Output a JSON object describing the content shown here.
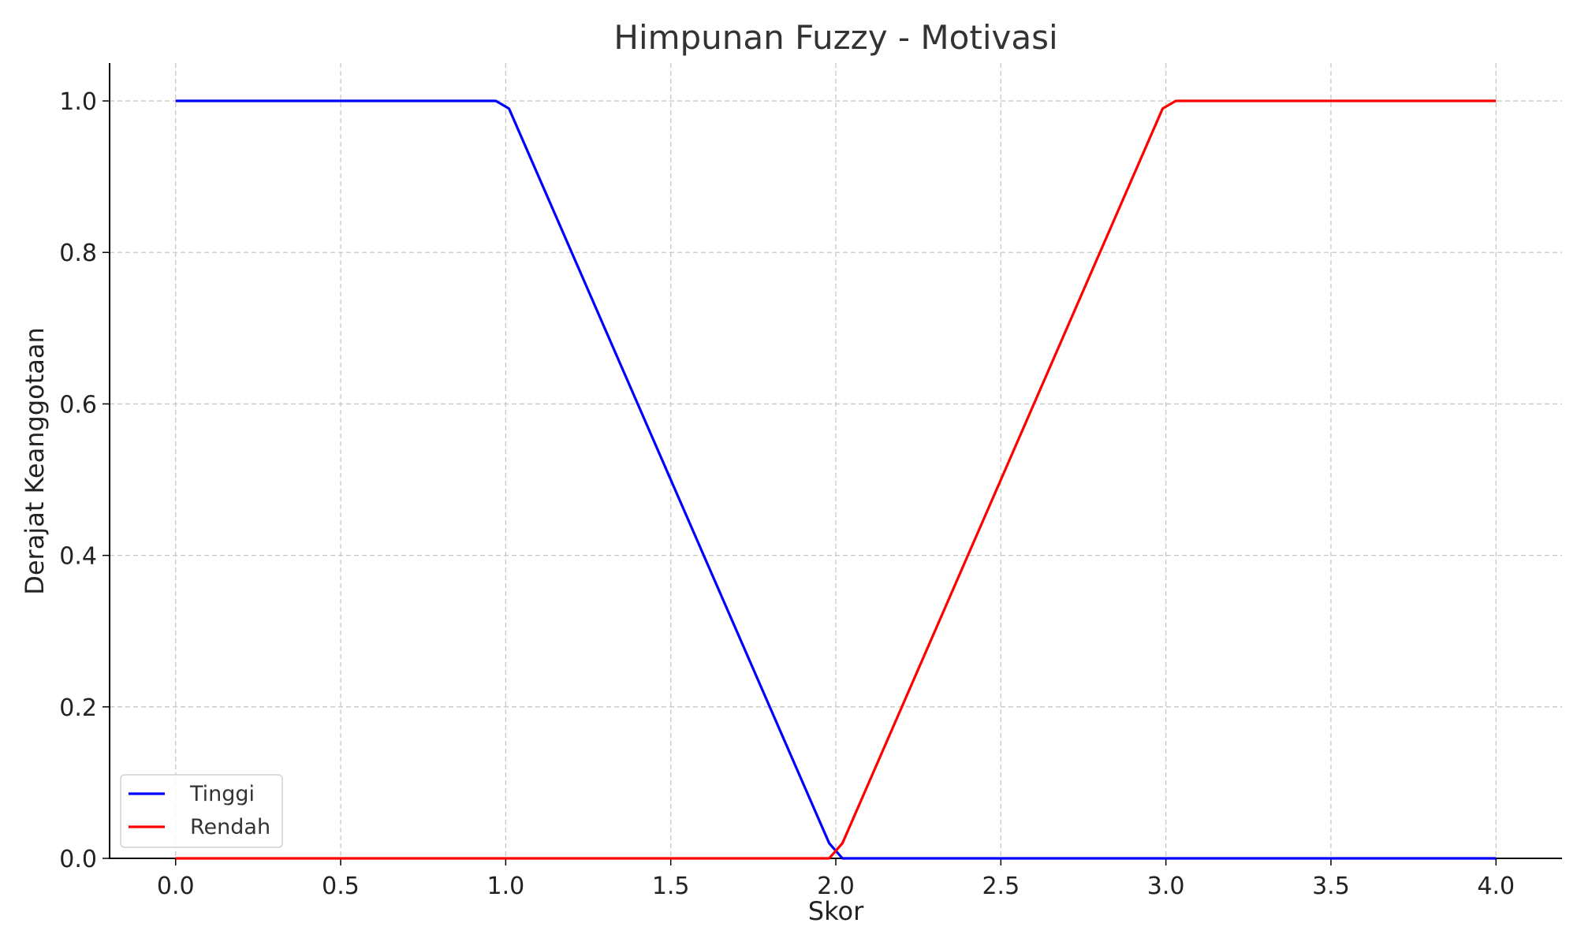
{
  "chart_data": {
    "type": "line",
    "title": "Himpunan Fuzzy - Motivasi",
    "xlabel": "Skor",
    "ylabel": "Derajat Keanggotaan",
    "xlim": [
      -0.2,
      4.2
    ],
    "ylim": [
      0.0,
      1.05
    ],
    "x_ticks": [
      {
        "value": 0.0,
        "label": "0.0"
      },
      {
        "value": 0.5,
        "label": "0.5"
      },
      {
        "value": 1.0,
        "label": "1.0"
      },
      {
        "value": 1.5,
        "label": "1.5"
      },
      {
        "value": 2.0,
        "label": "2.0"
      },
      {
        "value": 2.5,
        "label": "2.5"
      },
      {
        "value": 3.0,
        "label": "3.0"
      },
      {
        "value": 3.5,
        "label": "3.5"
      },
      {
        "value": 4.0,
        "label": "4.0"
      }
    ],
    "y_ticks": [
      {
        "value": 0.0,
        "label": "0.0"
      },
      {
        "value": 0.2,
        "label": "0.2"
      },
      {
        "value": 0.4,
        "label": "0.4"
      },
      {
        "value": 0.6,
        "label": "0.6"
      },
      {
        "value": 0.8,
        "label": "0.8"
      },
      {
        "value": 1.0,
        "label": "1.0"
      }
    ],
    "grid": true,
    "legend_position": "lower-left",
    "series": [
      {
        "name": "Tinggi",
        "color": "#0000ff",
        "x": [
          0.0,
          0.97,
          1.01,
          1.98,
          2.02,
          4.0
        ],
        "y": [
          1.0,
          1.0,
          0.99,
          0.02,
          0.0,
          0.0
        ]
      },
      {
        "name": "Rendah",
        "color": "#ff0000",
        "x": [
          0.0,
          1.98,
          2.02,
          2.99,
          3.03,
          4.0
        ],
        "y": [
          0.0,
          0.0,
          0.02,
          0.99,
          1.0,
          1.0
        ]
      }
    ]
  }
}
